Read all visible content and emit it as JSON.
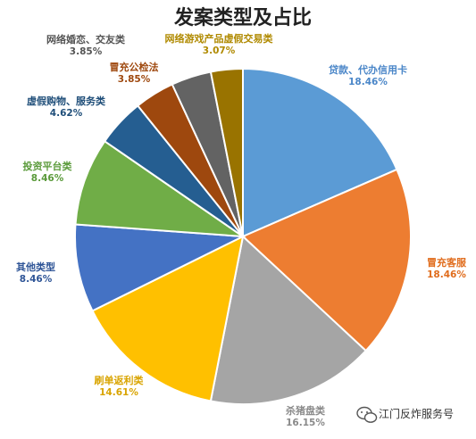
{
  "chart_data": {
    "type": "pie",
    "title": "发案类型及占比",
    "slices": [
      {
        "label": "贷款、代办信用卡",
        "percent_label": "18.46%",
        "value": 18.46,
        "color": "#5b9bd5"
      },
      {
        "label": "冒充客服",
        "percent_label": "18.46%",
        "value": 18.46,
        "color": "#ed7d31"
      },
      {
        "label": "杀猪盘类",
        "percent_label": "16.15%",
        "value": 16.15,
        "color": "#a5a5a5"
      },
      {
        "label": "刷单返利类",
        "percent_label": "14.61%",
        "value": 14.61,
        "color": "#ffc000"
      },
      {
        "label": "其他类型",
        "percent_label": "8.46%",
        "value": 8.46,
        "color": "#4472c4"
      },
      {
        "label": "投资平台类",
        "percent_label": "8.46%",
        "value": 8.46,
        "color": "#70ad47"
      },
      {
        "label": "虚假购物、服务类",
        "percent_label": "4.62%",
        "value": 4.62,
        "color": "#255e91"
      },
      {
        "label": "冒充公检法",
        "percent_label": "3.85%",
        "value": 3.85,
        "color": "#9e480e"
      },
      {
        "label": "网络婚恋、交友类",
        "percent_label": "3.85%",
        "value": 3.85,
        "color": "#636363"
      },
      {
        "label": "网络游戏产品虚假交易类",
        "percent_label": "3.07%",
        "value": 3.07,
        "color": "#997300"
      }
    ],
    "label_colors": [
      "#4a86c8",
      "#e06c1c",
      "#8a8a8a",
      "#d9a400",
      "#2f5597",
      "#5a9a3a",
      "#1f4e79",
      "#9e480e",
      "#555555",
      "#b08a00"
    ]
  },
  "watermark": {
    "text": "江门反炸服务号",
    "icon": "wechat-icon"
  }
}
